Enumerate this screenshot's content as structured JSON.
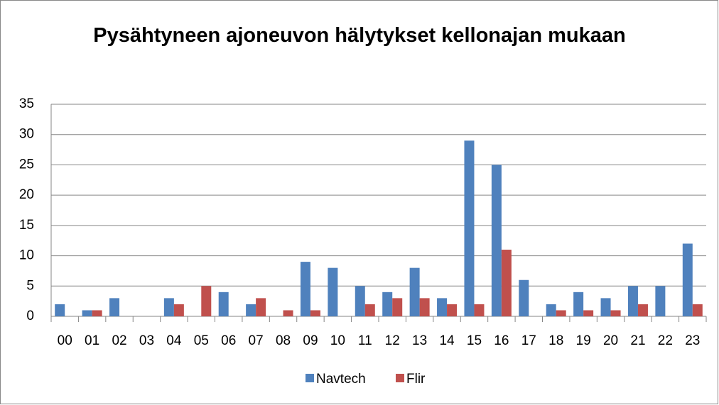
{
  "chart_data": {
    "type": "bar",
    "title": "Pysähtyneen ajoneuvon hälytykset kellonajan mukaan",
    "categories": [
      "00",
      "01",
      "02",
      "03",
      "04",
      "05",
      "06",
      "07",
      "08",
      "09",
      "10",
      "11",
      "12",
      "13",
      "14",
      "15",
      "16",
      "17",
      "18",
      "19",
      "20",
      "21",
      "22",
      "23"
    ],
    "series": [
      {
        "name": "Navtech",
        "color": "#4f81bd",
        "values": [
          2,
          1,
          3,
          0,
          3,
          0,
          4,
          2,
          0,
          9,
          8,
          5,
          4,
          8,
          3,
          29,
          25,
          6,
          2,
          4,
          3,
          5,
          5,
          12
        ]
      },
      {
        "name": "Flir",
        "color": "#c0504d",
        "values": [
          0,
          1,
          0,
          0,
          2,
          5,
          0,
          3,
          1,
          1,
          0,
          2,
          3,
          3,
          2,
          2,
          11,
          0,
          1,
          1,
          1,
          2,
          0,
          2
        ]
      }
    ],
    "ylim": [
      0,
      35
    ],
    "yticks": [
      0,
      5,
      10,
      15,
      20,
      25,
      30,
      35
    ],
    "grid": true,
    "legend": "bottom"
  }
}
